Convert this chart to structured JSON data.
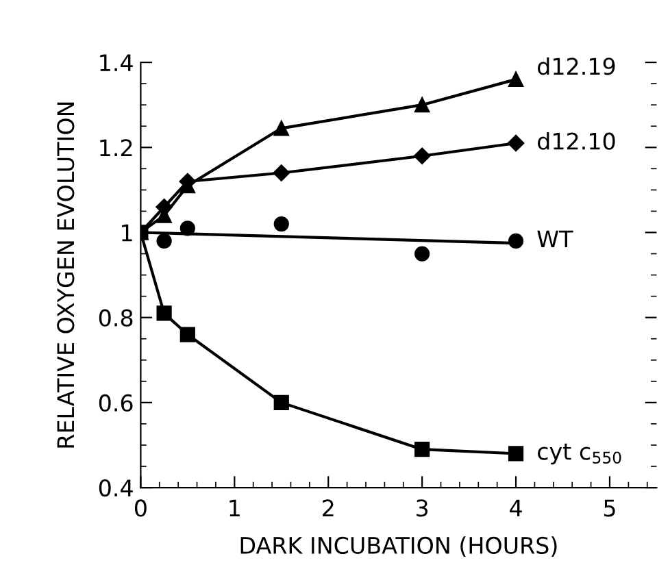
{
  "chart_data": {
    "type": "line",
    "xlabel": "DARK INCUBATION (HOURS)",
    "ylabel": "RELATIVE OXYGEN EVOLUTION",
    "x": [
      0,
      0.25,
      0.5,
      1.5,
      3,
      4
    ],
    "xlim": [
      0,
      5.5
    ],
    "xticks": [
      0,
      1,
      2,
      3,
      4,
      5
    ],
    "ylim": [
      0.4,
      1.4
    ],
    "yticks": [
      0.4,
      0.6,
      0.8,
      1,
      1.2,
      1.4
    ],
    "grid": false,
    "legend": "right",
    "series": [
      {
        "name": "d12.19",
        "color": "#000000",
        "marker": "triangle",
        "values": [
          1,
          1.04,
          1.11,
          1.245,
          1.3,
          1.36
        ]
      },
      {
        "name": "d12.10",
        "color": "#000000",
        "marker": "diamond",
        "values": [
          1,
          1.06,
          1.12,
          1.14,
          1.18,
          1.21
        ]
      },
      {
        "name": "WT",
        "color": "#000000",
        "marker": "circle",
        "type": "scatter",
        "values": [
          null,
          0.98,
          1.01,
          1.02,
          0.95,
          0.98
        ]
      },
      {
        "color": "#000000",
        "x": [
          0,
          4
        ],
        "values": [
          1,
          0.975
        ]
      },
      {
        "name": "cyt c$_{550}$",
        "color": "#000000",
        "marker": "square",
        "values": [
          1,
          0.81,
          0.76,
          0.6,
          0.49,
          0.48
        ]
      }
    ]
  }
}
